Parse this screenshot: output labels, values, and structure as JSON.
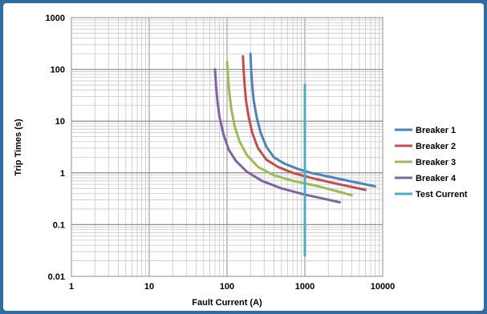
{
  "chart_data": {
    "type": "line",
    "title": "",
    "xlabel": "Fault Current (A)",
    "ylabel": "Trip Times (s)",
    "xscale": "log",
    "yscale": "log",
    "xlim": [
      1,
      10000
    ],
    "ylim": [
      0.01,
      1000
    ],
    "x_tick_labels": [
      "1",
      "10",
      "100",
      "1000",
      "10000"
    ],
    "y_tick_labels": [
      "0.01",
      "0.1",
      "1",
      "10",
      "100",
      "1000"
    ],
    "grid": true,
    "legend_position": "right",
    "series": [
      {
        "name": "Breaker 1",
        "color": "#4f81bd",
        "points": [
          [
            200,
            200
          ],
          [
            204,
            100
          ],
          [
            210,
            50
          ],
          [
            220,
            25
          ],
          [
            240,
            12
          ],
          [
            270,
            6
          ],
          [
            320,
            3.2
          ],
          [
            400,
            2
          ],
          [
            550,
            1.5
          ],
          [
            800,
            1.2
          ],
          [
            1200,
            1.0
          ],
          [
            2000,
            0.85
          ],
          [
            4000,
            0.68
          ],
          [
            8000,
            0.55
          ]
        ]
      },
      {
        "name": "Breaker 2",
        "color": "#c0504d",
        "points": [
          [
            160,
            180
          ],
          [
            163,
            100
          ],
          [
            168,
            50
          ],
          [
            175,
            25
          ],
          [
            190,
            12
          ],
          [
            210,
            6
          ],
          [
            250,
            3
          ],
          [
            320,
            1.8
          ],
          [
            450,
            1.3
          ],
          [
            700,
            1.0
          ],
          [
            1200,
            0.8
          ],
          [
            2500,
            0.62
          ],
          [
            6000,
            0.47
          ]
        ]
      },
      {
        "name": "Breaker 3",
        "color": "#9bbb59",
        "points": [
          [
            100,
            140
          ],
          [
            103,
            70
          ],
          [
            107,
            35
          ],
          [
            113,
            18
          ],
          [
            125,
            8
          ],
          [
            145,
            4
          ],
          [
            180,
            2.2
          ],
          [
            250,
            1.3
          ],
          [
            400,
            0.9
          ],
          [
            700,
            0.7
          ],
          [
            1500,
            0.55
          ],
          [
            4000,
            0.37
          ]
        ]
      },
      {
        "name": "Breaker 4",
        "color": "#8064a2",
        "points": [
          [
            70,
            100
          ],
          [
            72,
            50
          ],
          [
            75,
            25
          ],
          [
            80,
            12
          ],
          [
            90,
            5.5
          ],
          [
            105,
            2.8
          ],
          [
            130,
            1.7
          ],
          [
            180,
            1.05
          ],
          [
            280,
            0.7
          ],
          [
            500,
            0.5
          ],
          [
            1000,
            0.38
          ],
          [
            2800,
            0.27
          ]
        ]
      },
      {
        "name": "Test Current",
        "color": "#4bacc6",
        "points": [
          [
            1000,
            50
          ],
          [
            1000,
            0.025
          ]
        ]
      }
    ]
  }
}
